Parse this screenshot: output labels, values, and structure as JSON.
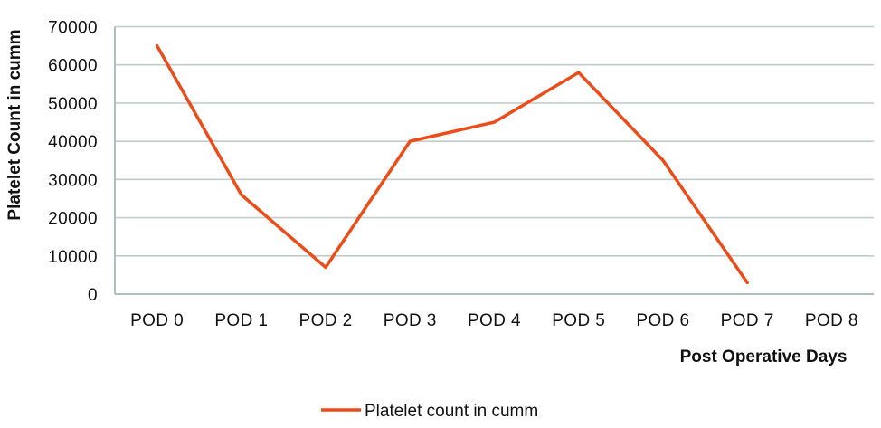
{
  "chart_data": {
    "type": "line",
    "title": "",
    "xlabel": "Post Operative Days",
    "ylabel": "Platelet Count in cumm",
    "categories": [
      "POD 0",
      "POD 1",
      "POD 2",
      "POD 3",
      "POD 4",
      "POD 5",
      "POD 6",
      "POD 7",
      "POD 8"
    ],
    "series": [
      {
        "name": "Platelet count in cumm",
        "values": [
          65000,
          26000,
          7000,
          40000,
          45000,
          58000,
          35000,
          3000,
          null
        ],
        "color": "#ED4C18"
      }
    ],
    "ylim": [
      0,
      70000
    ],
    "yticks": [
      0,
      10000,
      20000,
      30000,
      40000,
      50000,
      60000,
      70000
    ],
    "grid": "horizontal",
    "legend_position": "bottom"
  },
  "colors": {
    "line": "#ED4C18",
    "gridline": "#C2CCCC",
    "axis": "#AFBFBF",
    "text": "#111111",
    "background": "#FFFFFF"
  }
}
